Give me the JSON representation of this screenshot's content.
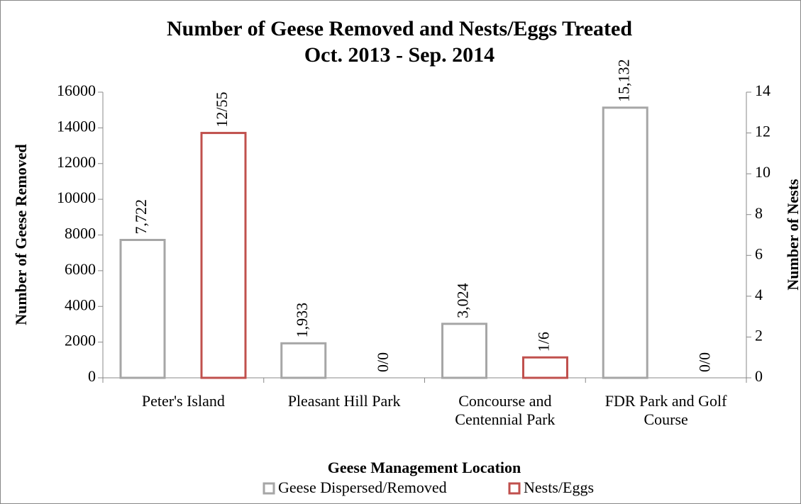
{
  "chart_data": {
    "type": "bar",
    "title": "Number of Geese Removed and Nests/Eggs Treated",
    "subtitle": "Oct. 2013 - Sep. 2014",
    "x_label": "Geese Management Location",
    "y_label": "Number of Geese Removed",
    "y2_label": "Number of Nests",
    "categories": [
      "Peter's Island",
      "Pleasant Hill Park",
      "Concourse and Centennial Park",
      "FDR Park and Golf Course"
    ],
    "series": [
      {
        "name": "Geese Dispersed/Removed",
        "color": "#a6a6a6",
        "values": [
          7722,
          1933,
          3024,
          15132
        ],
        "value_labels": [
          "7,722",
          "1,933",
          "3,024",
          "15,132"
        ]
      },
      {
        "name": "Nests/Eggs",
        "color": "#c0504d",
        "axis": "y2",
        "values": [
          12,
          0,
          1,
          0
        ],
        "value_labels": [
          "12/55",
          "0/0",
          "1/6",
          "0/0"
        ]
      }
    ],
    "ylim": [
      0,
      16000
    ],
    "yticks": [
      0,
      2000,
      4000,
      6000,
      8000,
      10000,
      12000,
      14000,
      16000
    ],
    "y2lim": [
      0,
      14
    ],
    "y2ticks": [
      0,
      2,
      4,
      6,
      8,
      10,
      12,
      14
    ],
    "legend": "bottom"
  }
}
